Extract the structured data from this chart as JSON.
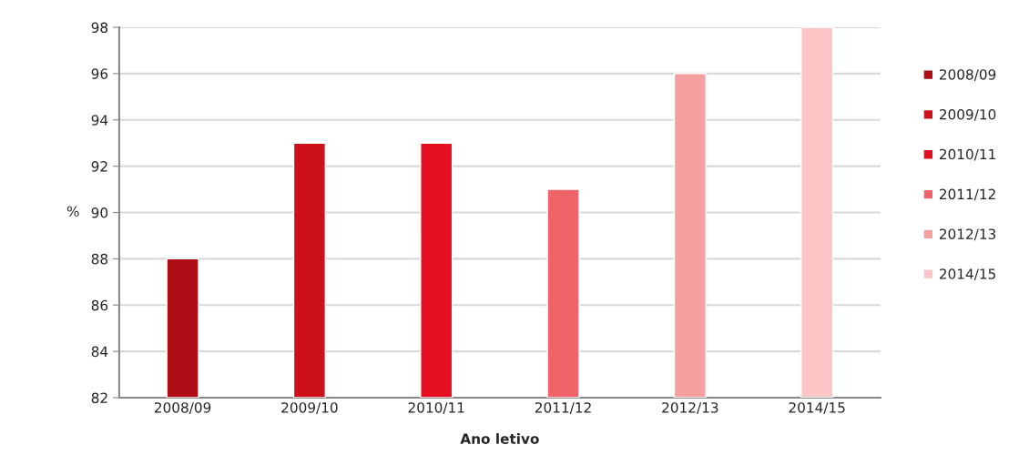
{
  "chart_data": {
    "type": "bar",
    "categories": [
      "2008/09",
      "2009/10",
      "2010/11",
      "2011/12",
      "2012/13",
      "2014/15"
    ],
    "series": [
      {
        "name": "2008/09",
        "color": "#ae0d16",
        "values": [
          88,
          null,
          null,
          null,
          null,
          null
        ]
      },
      {
        "name": "2009/10",
        "color": "#cc111b",
        "values": [
          null,
          93,
          null,
          null,
          null,
          null
        ]
      },
      {
        "name": "2010/11",
        "color": "#e30f20",
        "values": [
          null,
          null,
          93,
          null,
          null,
          null
        ]
      },
      {
        "name": "2011/12",
        "color": "#ef6468",
        "values": [
          null,
          null,
          null,
          91,
          null,
          null
        ]
      },
      {
        "name": "2012/13",
        "color": "#f4a0a0",
        "values": [
          null,
          null,
          null,
          null,
          96,
          null
        ]
      },
      {
        "name": "2014/15",
        "color": "#fbc4c5",
        "values": [
          null,
          null,
          null,
          null,
          null,
          98
        ]
      }
    ],
    "xlabel": "Ano letivo",
    "ylabel": "%",
    "ylim": [
      82,
      98
    ],
    "yticks": [
      82,
      84,
      86,
      88,
      90,
      92,
      94,
      96,
      98
    ],
    "grid": "y",
    "stacked": true,
    "legend": "right"
  }
}
